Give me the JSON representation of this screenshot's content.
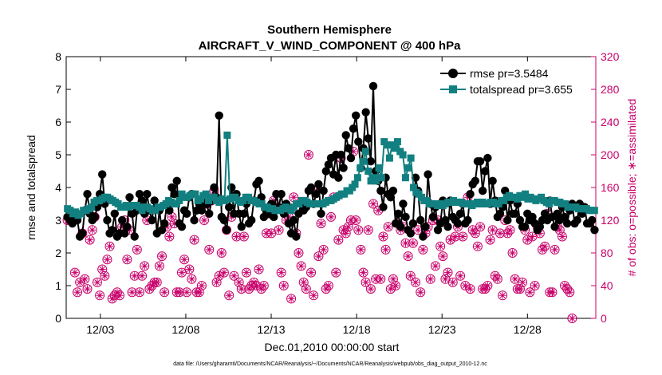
{
  "chart_data": {
    "type": "line",
    "title_line1": "Southern Hemisphere",
    "title_line2": "AIRCRAFT_V_WIND_COMPONENT @ 400 hPa",
    "xlabel": "Dec.01,2010 00:00:00 start",
    "ylabel": "rmse and totalspread",
    "ylabel_right": "# of obs: o=possible; ∗=assimilated",
    "footnote": "data file: /Users/gharamti/Documents/NCAR/Reanalysis/~/Documents/NCAR/Reanalysis/webpub/obs_diag_output_2010-12.nc",
    "xlim": [
      1,
      32
    ],
    "ylim": [
      0,
      8
    ],
    "ylim_right": [
      0,
      320
    ],
    "xticks": [
      3,
      8,
      13,
      18,
      23,
      28
    ],
    "xtick_labels": [
      "12/03",
      "12/08",
      "12/13",
      "12/18",
      "12/23",
      "12/28"
    ],
    "yticks": [
      0,
      1,
      2,
      3,
      4,
      5,
      6,
      7,
      8
    ],
    "yticks_right": [
      0,
      40,
      80,
      120,
      160,
      200,
      240,
      280,
      320
    ],
    "colors": {
      "rmse": "#000000",
      "spread": "#128080",
      "obs": "#c8006a"
    },
    "series": [
      {
        "name": "rmse",
        "legend": "rmse pr=3.5484",
        "values": [
          3.1,
          3.0,
          2.9,
          3.2,
          3.0,
          2.5,
          2.6,
          3.3,
          3.8,
          3.2,
          3.0,
          3.1,
          3.4,
          3.8,
          4.4,
          3.5,
          3.0,
          2.6,
          2.7,
          3.2,
          2.5,
          2.6,
          3.0,
          2.6,
          2.8,
          3.7,
          3.2,
          2.5,
          3.3,
          3.8,
          3.6,
          3.2,
          3.8,
          3.3,
          3.0,
          3.6,
          2.6,
          3.3,
          2.7,
          2.9,
          3.5,
          3.3,
          4.0,
          3.8,
          4.2,
          2.9,
          2.8,
          3.3,
          3.2,
          3.7,
          3.8,
          3.0,
          3.3,
          3.5,
          3.3,
          3.6,
          3.5,
          3.2,
          3.6,
          4.0,
          3.7,
          6.2,
          3.1,
          3.0,
          2.7,
          3.4,
          4.0,
          3.2,
          3.8,
          3.2,
          2.8,
          3.2,
          3.5,
          2.9,
          3.0,
          3.6,
          4.1,
          4.2,
          3.7,
          3.1,
          3.3,
          3.2,
          3.5,
          3.1,
          3.8,
          3.4,
          3.8,
          3.2,
          3.5,
          2.9,
          2.6,
          3.0,
          2.5,
          3.2,
          3.5,
          3.3,
          3.4,
          3.9,
          4.0,
          3.5,
          3.8,
          4.1,
          3.2,
          3.9,
          4.5,
          4.7,
          4.9,
          4.4,
          5.0,
          4.3,
          5.0,
          4.6,
          5.6,
          5.2,
          4.9,
          5.8,
          6.2,
          5.4,
          4.6,
          5.2,
          6.3,
          5.5,
          4.8,
          7.1,
          4.5,
          4.2,
          3.9,
          3.4,
          4.3,
          3.8,
          3.7,
          3.9,
          2.9,
          3.2,
          2.8,
          3.5,
          3.1,
          2.7,
          2.6,
          2.9,
          4.3,
          3.9,
          3.0,
          2.5,
          2.8,
          4.4,
          3.5,
          3.1,
          3.4,
          2.7,
          2.9,
          3.6,
          3.0,
          2.8,
          3.6,
          3.1,
          3.0,
          2.9,
          3.2,
          3.5,
          2.9,
          3.0,
          3.8,
          4.1,
          4.2,
          4.8,
          4.8,
          3.9,
          4.5,
          4.9,
          3.5,
          4.2,
          3.6,
          3.1,
          3.2,
          3.4,
          3.9,
          3.0,
          3.6,
          3.2,
          3.2,
          3.5,
          3.0,
          2.8,
          2.8,
          3.2,
          3.0,
          3.1,
          2.9,
          2.7,
          2.8,
          3.0,
          3.2,
          3.0,
          3.6,
          3.1,
          2.8,
          3.2,
          3.0,
          3.4,
          3.1,
          2.9,
          3.3,
          3.5,
          2.9,
          3.0,
          3.5,
          3.2,
          3.4,
          2.9,
          2.9,
          3.0,
          2.7
        ]
      },
      {
        "name": "totalspread",
        "legend": "totalspread pr=3.655",
        "values": [
          3.35,
          3.3,
          3.2,
          3.25,
          3.15,
          3.2,
          3.3,
          3.3,
          3.35,
          3.4,
          3.55,
          3.6,
          3.6,
          3.65,
          3.7,
          3.7,
          3.65,
          3.6,
          3.55,
          3.5,
          3.4,
          3.4,
          3.45,
          3.4,
          3.45,
          3.45,
          3.45,
          3.4,
          3.3,
          3.4,
          3.4,
          3.35,
          3.3,
          3.3,
          3.4,
          3.4,
          3.45,
          3.5,
          3.6,
          3.55,
          3.5,
          3.5,
          3.6,
          3.8,
          3.7,
          3.7,
          3.75,
          3.8,
          3.8,
          3.6,
          3.65,
          3.75,
          3.8,
          3.6,
          3.7,
          3.7,
          3.6,
          3.55,
          3.65,
          3.6,
          5.6,
          3.65,
          3.7,
          3.7,
          3.6,
          3.55,
          3.6,
          3.7,
          3.7,
          3.6,
          3.6,
          3.55,
          3.5,
          3.5,
          3.4,
          3.4,
          3.35,
          3.35,
          3.3,
          3.3,
          3.3,
          3.35,
          3.4,
          3.35,
          3.3,
          3.4,
          3.5,
          3.5,
          3.6,
          3.6,
          3.55,
          3.5,
          3.5,
          3.5,
          3.5,
          3.5,
          3.5,
          3.55,
          3.6,
          3.6,
          3.65,
          3.7,
          3.75,
          3.8,
          3.8,
          3.9,
          3.9,
          4.0,
          4.1,
          4.3,
          4.6,
          4.8,
          5.1,
          4.5,
          4.2,
          4.3,
          4.2,
          4.6,
          4.3,
          5.4,
          5.3,
          4.9,
          5.3,
          5.2,
          5.4,
          5.1,
          5.0,
          4.3,
          4.6,
          4.9,
          4.0,
          3.85,
          3.8,
          3.7,
          3.6,
          3.6,
          3.5,
          3.5,
          3.5,
          3.45,
          3.5,
          3.45,
          3.5,
          3.55,
          3.55,
          3.6,
          3.55,
          3.55,
          3.55,
          3.5,
          3.5,
          3.5,
          3.45,
          3.5,
          3.55,
          3.5,
          3.55,
          3.5,
          3.5,
          3.55,
          3.55,
          3.5,
          3.5,
          3.6,
          3.6,
          3.7,
          3.75,
          3.7,
          3.7,
          3.65,
          3.75,
          3.7,
          3.8,
          3.65,
          3.7,
          3.65,
          3.6,
          3.65,
          3.7,
          3.6,
          3.55,
          3.5,
          3.6,
          3.6,
          3.55,
          3.55,
          3.5,
          3.5,
          3.4,
          3.4,
          3.4,
          3.4,
          3.35,
          3.35,
          3.35,
          3.35,
          3.3,
          3.3,
          3.3
        ]
      }
    ],
    "obs_possible": [
      120,
      120,
      120,
      56,
      32,
      44,
      104,
      48,
      36,
      96,
      108,
      124,
      44,
      28,
      60,
      52,
      72,
      88,
      24,
      28,
      32,
      28,
      112,
      120,
      72,
      108,
      32,
      52,
      84,
      32,
      52,
      64,
      120,
      36,
      40,
      44,
      44,
      64,
      76,
      32,
      112,
      100,
      124,
      116,
      32,
      32,
      56,
      72,
      32,
      60,
      48,
      96,
      32,
      32,
      40,
      120,
      140,
      84,
      144,
      156,
      44,
      52,
      80,
      56,
      108,
      28,
      124,
      52,
      100,
      44,
      36,
      100,
      56,
      36,
      40,
      44,
      40,
      60,
      36,
      40,
      104,
      128,
      104,
      144,
      136,
      108,
      56,
      40,
      120,
      124,
      24,
      148,
      104,
      80,
      64,
      44,
      36,
      200,
      56,
      28,
      156,
      76,
      116,
      84,
      36,
      40,
      124,
      148,
      56,
      96,
      196,
      108,
      104,
      112,
      120,
      204,
      120,
      108,
      84,
      56,
      44,
      108,
      36,
      140,
      48,
      132,
      48,
      100,
      84,
      112,
      36,
      48,
      40,
      116,
      108,
      112,
      92,
      76,
      52,
      92,
      44,
      108,
      32,
      84,
      104,
      112,
      48,
      120,
      64,
      120,
      88,
      76,
      48,
      56,
      96,
      44,
      100,
      112,
      52,
      100,
      40,
      148,
      36,
      108,
      104,
      88,
      112,
      36,
      36,
      40,
      96,
      108,
      52,
      48,
      104,
      28,
      120,
      104,
      108,
      80,
      48,
      36,
      36,
      44,
      108,
      96,
      32,
      100,
      40,
      112,
      104,
      84,
      88,
      128,
      32,
      32,
      84,
      112,
      108,
      100,
      40,
      36,
      32,
      0
    ],
    "obs_assimilated": [
      120,
      120,
      120,
      56,
      32,
      44,
      104,
      48,
      36,
      96,
      108,
      124,
      44,
      28,
      60,
      52,
      72,
      88,
      24,
      28,
      32,
      28,
      112,
      120,
      72,
      108,
      32,
      52,
      84,
      32,
      52,
      64,
      120,
      36,
      40,
      44,
      44,
      64,
      76,
      32,
      112,
      100,
      124,
      116,
      32,
      32,
      56,
      72,
      32,
      60,
      48,
      96,
      32,
      32,
      40,
      120,
      140,
      84,
      144,
      156,
      44,
      52,
      80,
      56,
      108,
      28,
      124,
      52,
      100,
      44,
      36,
      100,
      56,
      36,
      40,
      44,
      40,
      60,
      36,
      40,
      104,
      128,
      104,
      144,
      136,
      108,
      56,
      40,
      120,
      124,
      24,
      148,
      104,
      80,
      64,
      44,
      36,
      200,
      56,
      28,
      156,
      76,
      116,
      84,
      36,
      40,
      124,
      148,
      56,
      96,
      196,
      108,
      104,
      112,
      120,
      204,
      120,
      108,
      84,
      56,
      44,
      108,
      36,
      140,
      48,
      132,
      48,
      100,
      84,
      112,
      36,
      48,
      40,
      116,
      108,
      112,
      92,
      76,
      52,
      92,
      44,
      108,
      32,
      84,
      104,
      112,
      48,
      120,
      64,
      120,
      88,
      76,
      48,
      56,
      96,
      44,
      100,
      112,
      52,
      100,
      40,
      148,
      36,
      108,
      104,
      88,
      112,
      36,
      36,
      40,
      96,
      108,
      52,
      48,
      104,
      28,
      120,
      104,
      108,
      80,
      48,
      36,
      36,
      44,
      108,
      96,
      32,
      100,
      40,
      112,
      104,
      84,
      88,
      128,
      32,
      32,
      84,
      112,
      108,
      100,
      40,
      36,
      32,
      0
    ]
  }
}
